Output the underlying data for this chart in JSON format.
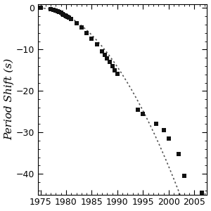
{
  "ylabel": "Period Shift (s)",
  "xlim": [
    1974.5,
    2007.5
  ],
  "ylim": [
    -45,
    1
  ],
  "xticks": [
    1975,
    1980,
    1985,
    1990,
    1995,
    2000,
    2005
  ],
  "yticks": [
    0,
    -10,
    -20,
    -30,
    -40
  ],
  "data_points": [
    [
      1975.0,
      0.0
    ],
    [
      1977.0,
      -0.22
    ],
    [
      1977.5,
      -0.35
    ],
    [
      1978.0,
      -0.55
    ],
    [
      1978.3,
      -0.72
    ],
    [
      1978.6,
      -0.92
    ],
    [
      1979.0,
      -1.15
    ],
    [
      1979.3,
      -1.38
    ],
    [
      1979.5,
      -1.55
    ],
    [
      1979.8,
      -1.75
    ],
    [
      1980.0,
      -1.92
    ],
    [
      1980.3,
      -2.15
    ],
    [
      1980.6,
      -2.38
    ],
    [
      1981.0,
      -2.72
    ],
    [
      1982.0,
      -3.65
    ],
    [
      1983.0,
      -4.75
    ],
    [
      1984.0,
      -6.0
    ],
    [
      1985.0,
      -7.35
    ],
    [
      1986.0,
      -8.8
    ],
    [
      1987.0,
      -10.4
    ],
    [
      1987.5,
      -11.25
    ],
    [
      1988.0,
      -12.1
    ],
    [
      1988.5,
      -13.0
    ],
    [
      1989.0,
      -13.95
    ],
    [
      1989.5,
      -14.95
    ],
    [
      1990.0,
      -15.95
    ],
    [
      1994.0,
      -24.5
    ],
    [
      1995.0,
      -25.5
    ],
    [
      1997.5,
      -28.0
    ],
    [
      1999.0,
      -29.5
    ],
    [
      2000.0,
      -31.5
    ],
    [
      2002.0,
      -35.2
    ],
    [
      2003.0,
      -40.5
    ],
    [
      2006.5,
      -44.6
    ]
  ],
  "gr_curve_params": {
    "t0": 1974.85,
    "A": 0.000355,
    "p": 2.42
  },
  "dot_color": "#111111",
  "dot_size": 22,
  "curve_color": "#555555",
  "curve_linewidth": 1.2,
  "background_color": "#ffffff",
  "tick_fontsize": 9,
  "ylabel_fontsize": 11,
  "axis_linewidth": 0.8
}
